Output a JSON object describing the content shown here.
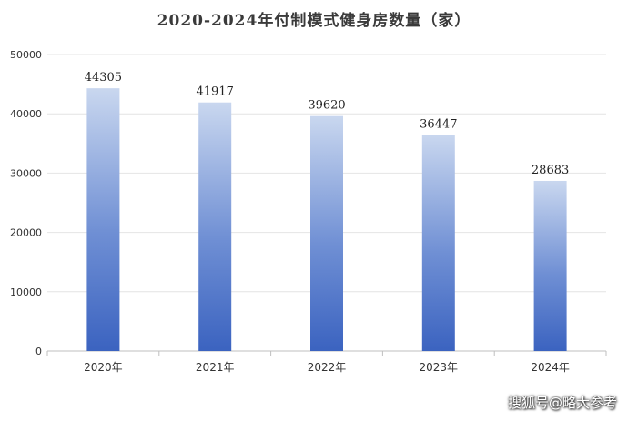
{
  "chart_data": {
    "type": "bar",
    "title": "2020-2024年付制模式健身房数量（家）",
    "categories": [
      "2020年",
      "2021年",
      "2022年",
      "2023年",
      "2024年"
    ],
    "values": [
      44305,
      41917,
      39620,
      36447,
      28683
    ],
    "data_labels": [
      "44305",
      "41917",
      "39620",
      "36447",
      "28683"
    ],
    "ylim": [
      0,
      50000
    ],
    "yticks": [
      0,
      10000,
      20000,
      30000,
      40000,
      50000
    ],
    "xlabel": "",
    "ylabel": "",
    "grid": true,
    "bar_color_top": "#c9d7ef",
    "bar_color_bottom": "#3b63c0"
  },
  "watermark": "搜狐号@略大参考"
}
